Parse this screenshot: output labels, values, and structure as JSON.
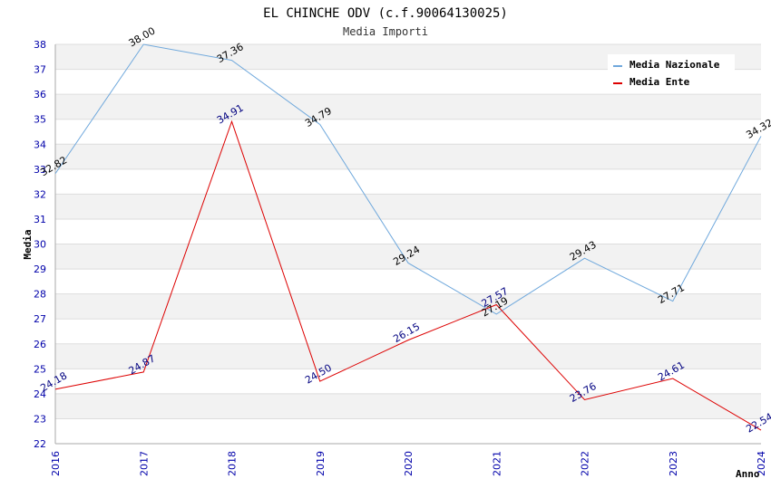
{
  "chart_data": {
    "type": "line",
    "title": "EL CHINCHE ODV (c.f.90064130025)",
    "subtitle": "Media Importi",
    "xlabel": "Anno",
    "ylabel": "Media",
    "categories": [
      "2016",
      "2017",
      "2018",
      "2019",
      "2020",
      "2021",
      "2022",
      "2023",
      "2024"
    ],
    "ylim": [
      22,
      38
    ],
    "yticks": [
      22,
      23,
      24,
      25,
      26,
      27,
      28,
      29,
      30,
      31,
      32,
      33,
      34,
      35,
      36,
      37,
      38
    ],
    "grid": true,
    "legend_position": "top-right",
    "series": [
      {
        "name": "Media Nazionale",
        "color": "#6fa8dc",
        "label_color": "#000000",
        "values": [
          32.82,
          38.0,
          37.36,
          34.79,
          29.24,
          27.19,
          29.43,
          27.71,
          34.32
        ],
        "labels": [
          "32.82",
          "38.00",
          "37.36",
          "34.79",
          "29.24",
          "27.19",
          "29.43",
          "27.71",
          "34.32"
        ]
      },
      {
        "name": "Media Ente",
        "color": "#dd0000",
        "label_color": "#000080",
        "values": [
          24.18,
          24.87,
          34.91,
          24.5,
          26.15,
          27.57,
          23.76,
          24.61,
          22.54
        ],
        "labels": [
          "24.18",
          "24.87",
          "34.91",
          "24.50",
          "26.15",
          "27.57",
          "23.76",
          "24.61",
          "22.54"
        ]
      }
    ],
    "colors": {
      "band": "#f2f2f2",
      "gridline": "#dddddd",
      "axis": "#aaaaaa",
      "tick_text": "#0000aa"
    }
  }
}
